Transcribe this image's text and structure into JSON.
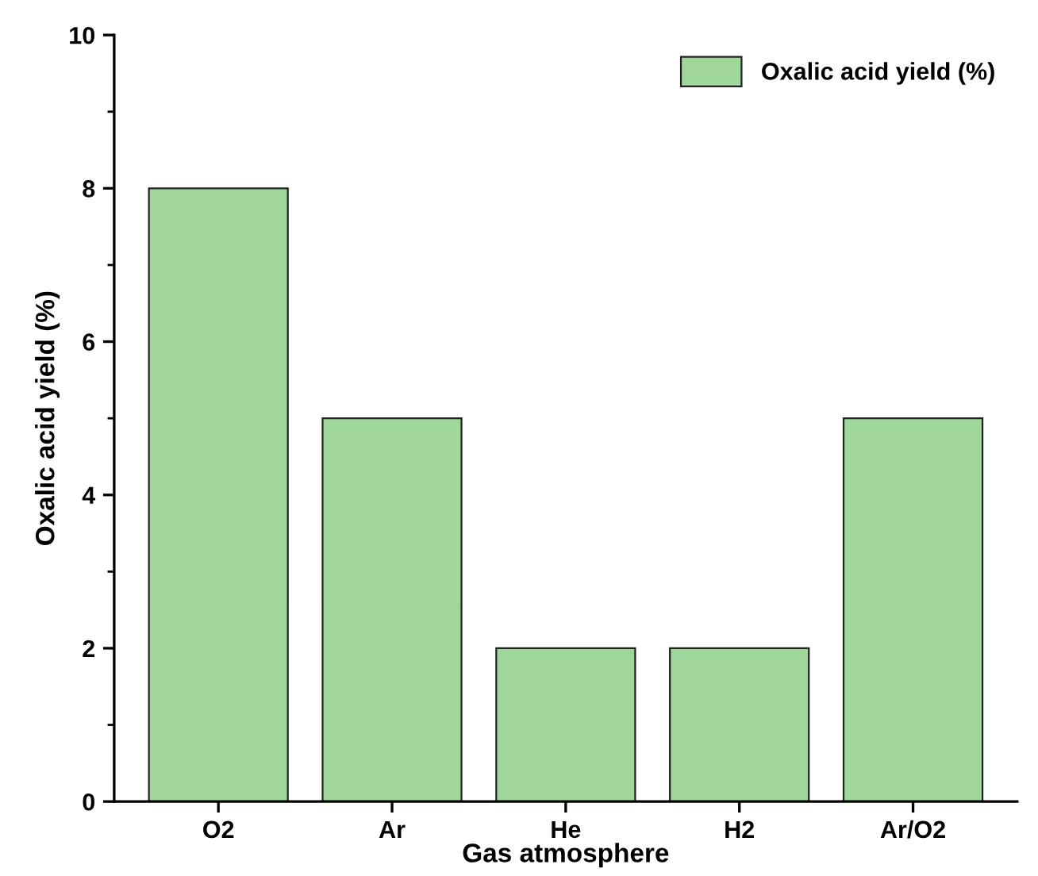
{
  "chart_data": {
    "type": "bar",
    "xlabel": "Gas atmosphere",
    "ylabel": "Oxalic acid yield (%)",
    "categories": [
      "O2",
      "Ar",
      "He",
      "H2",
      "Ar/O2"
    ],
    "series": [
      {
        "name": "Oxalic acid yield (%)",
        "color": "#9fd69a",
        "values": [
          8,
          5,
          2,
          2,
          5
        ]
      }
    ],
    "ylim": [
      0,
      10
    ],
    "yticks": [
      0,
      2,
      4,
      6,
      8,
      10
    ],
    "grid": false,
    "legend": "top right"
  }
}
